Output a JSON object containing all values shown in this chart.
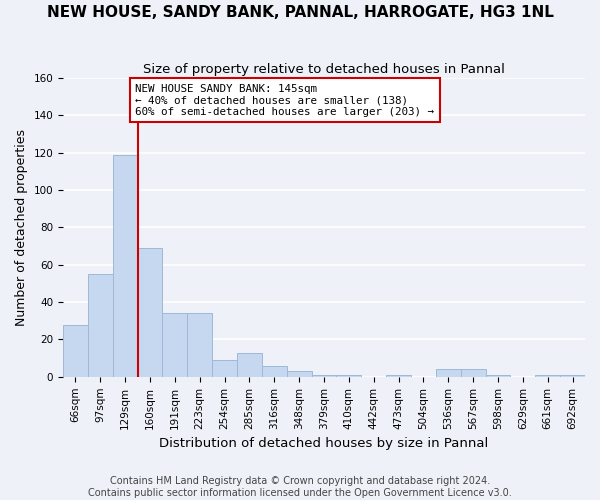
{
  "title": "NEW HOUSE, SANDY BANK, PANNAL, HARROGATE, HG3 1NL",
  "subtitle": "Size of property relative to detached houses in Pannal",
  "xlabel": "Distribution of detached houses by size in Pannal",
  "ylabel": "Number of detached properties",
  "bar_values": [
    28,
    55,
    119,
    69,
    34,
    34,
    9,
    13,
    6,
    3,
    1,
    1,
    0,
    1,
    0,
    4,
    4,
    1,
    0,
    1,
    1
  ],
  "all_labels": [
    "66sqm",
    "97sqm",
    "129sqm",
    "160sqm",
    "191sqm",
    "223sqm",
    "254sqm",
    "285sqm",
    "316sqm",
    "348sqm",
    "379sqm",
    "410sqm",
    "442sqm",
    "473sqm",
    "504sqm",
    "536sqm",
    "567sqm",
    "598sqm",
    "629sqm",
    "661sqm",
    "692sqm"
  ],
  "bar_color": "#c5d8f0",
  "bar_edge_color": "#a0b8d8",
  "vline_color": "#cc0000",
  "annotation_title": "NEW HOUSE SANDY BANK: 145sqm",
  "annotation_line1": "← 40% of detached houses are smaller (138)",
  "annotation_line2": "60% of semi-detached houses are larger (203) →",
  "annotation_box_color": "#ffffff",
  "ylim": [
    0,
    160
  ],
  "yticks": [
    0,
    20,
    40,
    60,
    80,
    100,
    120,
    140,
    160
  ],
  "footer_line1": "Contains HM Land Registry data © Crown copyright and database right 2024.",
  "footer_line2": "Contains public sector information licensed under the Open Government Licence v3.0.",
  "background_color": "#eef2f8",
  "grid_color": "#ffffff",
  "title_fontsize": 11,
  "subtitle_fontsize": 9.5,
  "axis_label_fontsize": 9,
  "tick_fontsize": 7.5,
  "footer_fontsize": 7
}
